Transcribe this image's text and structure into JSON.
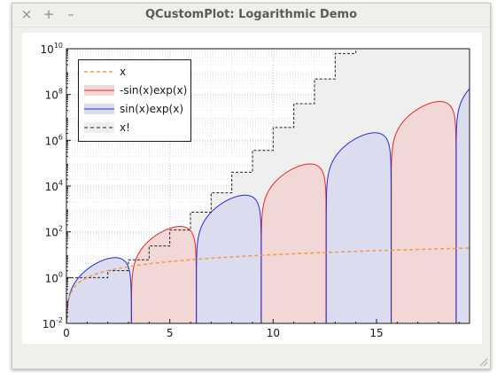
{
  "window": {
    "title": "QCustomPlot: Logarithmic Demo",
    "buttons": {
      "close": "×",
      "maximize": "+",
      "minimize": "–"
    }
  },
  "chart_data": {
    "type": "line",
    "xlim": [
      0,
      19.5
    ],
    "ylim": [
      0.01,
      10000000000
    ],
    "yscale": "log",
    "x_ticks": [
      0,
      5,
      10,
      15
    ],
    "x_tick_labels": [
      "0",
      "5",
      "10",
      "15"
    ],
    "y_tick_labels": [
      {
        "base": "10",
        "exp": "-2"
      },
      {
        "base": "10",
        "exp": "0"
      },
      {
        "base": "10",
        "exp": "2"
      },
      {
        "base": "10",
        "exp": "4"
      },
      {
        "base": "10",
        "exp": "6"
      },
      {
        "base": "10",
        "exp": "8"
      },
      {
        "base": "10",
        "exp": "10"
      }
    ],
    "grid": true,
    "legend_position": "top-left",
    "series": [
      {
        "name": "x",
        "color": "#f2994a",
        "style": "dashed",
        "function": "x"
      },
      {
        "name": "-sin(x)exp(x)",
        "color": "#e8262a",
        "fill": "#f2d7d7",
        "style": "solid",
        "function": "-sin(x)exp(x)"
      },
      {
        "name": " sin(x)exp(x)",
        "color": "#2a2ad6",
        "fill": "#dcdcf0",
        "style": "solid",
        "function": "sin(x)exp(x)"
      },
      {
        "name": "x!",
        "color": "#222222",
        "fill": "#efefef",
        "style": "dashed-step",
        "function": "factorial"
      }
    ]
  }
}
